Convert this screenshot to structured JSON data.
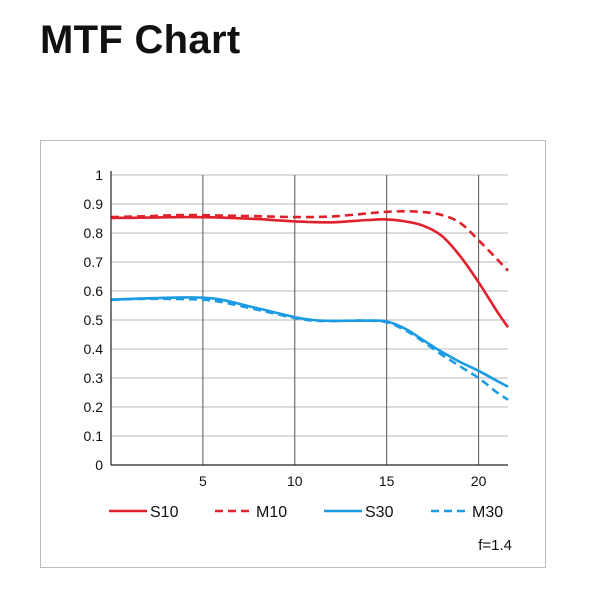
{
  "page": {
    "title": "MTF Chart"
  },
  "chart_data": {
    "type": "line",
    "title": "",
    "xlabel": "",
    "ylabel": "",
    "xlim": [
      0,
      21.6
    ],
    "ylim": [
      0,
      1
    ],
    "x_ticks": [
      5,
      10,
      15,
      20
    ],
    "y_ticks": [
      0,
      0.1,
      0.2,
      0.3,
      0.4,
      0.5,
      0.6,
      0.7,
      0.8,
      0.9,
      1
    ],
    "y_tick_labels": [
      "0",
      "0.1",
      "0.2",
      "0.3",
      "0.4",
      "0.5",
      "0.6",
      "0.7",
      "0.8",
      "0.9",
      "1"
    ],
    "grid": true,
    "legend_position": "bottom",
    "annotation": "f=1.4",
    "series": [
      {
        "name": "S10",
        "color": "#e0202a",
        "dash": "solid",
        "x": [
          0,
          2,
          4,
          6,
          8,
          10,
          12,
          14,
          15,
          16,
          17,
          18,
          19,
          20,
          21,
          21.6
        ],
        "y": [
          0.852,
          0.853,
          0.855,
          0.853,
          0.848,
          0.84,
          0.837,
          0.845,
          0.847,
          0.84,
          0.825,
          0.79,
          0.72,
          0.63,
          0.53,
          0.475
        ]
      },
      {
        "name": "M10",
        "color": "#e0202a",
        "dash": "dashed",
        "x": [
          0,
          2,
          4,
          6,
          8,
          10,
          12,
          14,
          15,
          16,
          17,
          18,
          19,
          20,
          21,
          21.6
        ],
        "y": [
          0.855,
          0.858,
          0.862,
          0.86,
          0.858,
          0.855,
          0.857,
          0.868,
          0.873,
          0.875,
          0.872,
          0.862,
          0.835,
          0.775,
          0.71,
          0.67
        ]
      },
      {
        "name": "S30",
        "color": "#1a9be3",
        "dash": "solid",
        "x": [
          0,
          2,
          4,
          5,
          6,
          8,
          10,
          11,
          12,
          14,
          15,
          16,
          17,
          18,
          19,
          20,
          21,
          21.6
        ],
        "y": [
          0.57,
          0.575,
          0.578,
          0.577,
          0.57,
          0.54,
          0.51,
          0.5,
          0.497,
          0.498,
          0.495,
          0.47,
          0.43,
          0.39,
          0.355,
          0.325,
          0.29,
          0.27
        ]
      },
      {
        "name": "M30",
        "color": "#1a9be3",
        "dash": "dashed",
        "x": [
          0,
          2,
          4,
          5,
          6,
          8,
          10,
          11,
          12,
          14,
          15,
          16,
          17,
          18,
          19,
          20,
          21,
          21.6
        ],
        "y": [
          0.57,
          0.573,
          0.572,
          0.57,
          0.562,
          0.535,
          0.507,
          0.498,
          0.497,
          0.498,
          0.492,
          0.465,
          0.425,
          0.38,
          0.34,
          0.3,
          0.25,
          0.225
        ]
      }
    ]
  }
}
